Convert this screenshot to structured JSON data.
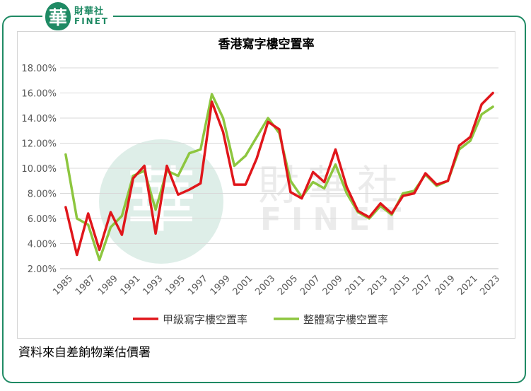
{
  "logo": {
    "mark": "華",
    "cn": "財華社",
    "en": "FINET"
  },
  "watermark": {
    "mark": "華",
    "cn": "財華社",
    "en": "FINET"
  },
  "source": "資料來自差餉物業估價署",
  "colors": {
    "grade_a": "#e0161b",
    "overall": "#8dc63f",
    "brand": "#1f8a64"
  },
  "chart_data": {
    "type": "line",
    "title": "香港寫字樓空置率",
    "xlabel": "",
    "ylabel": "",
    "x": [
      1985,
      1986,
      1987,
      1988,
      1989,
      1990,
      1991,
      1992,
      1993,
      1994,
      1995,
      1996,
      1997,
      1998,
      1999,
      2000,
      2001,
      2002,
      2003,
      2004,
      2005,
      2006,
      2007,
      2008,
      2009,
      2010,
      2011,
      2012,
      2013,
      2014,
      2015,
      2016,
      2017,
      2018,
      2019,
      2020,
      2021,
      2022,
      2023
    ],
    "x_tick_labels": [
      "1985",
      "1987",
      "1989",
      "1991",
      "1993",
      "1995",
      "1997",
      "1999",
      "2001",
      "2003",
      "2005",
      "2007",
      "2009",
      "2011",
      "2013",
      "2015",
      "2017",
      "2019",
      "2021",
      "2023"
    ],
    "y_tick_labels": [
      "2.00%",
      "4.00%",
      "6.00%",
      "8.00%",
      "10.00%",
      "12.00%",
      "14.00%",
      "16.00%",
      "18.00%"
    ],
    "ylim": [
      2,
      18
    ],
    "grid": "horizontal",
    "legend": "bottom",
    "series": [
      {
        "name": "甲級寫字樓空置率",
        "values": [
          6.9,
          3.1,
          6.4,
          3.5,
          6.5,
          4.7,
          9.2,
          10.2,
          4.8,
          10.2,
          7.9,
          8.3,
          8.8,
          15.3,
          12.9,
          8.7,
          8.7,
          10.8,
          13.7,
          13.1,
          8.1,
          7.6,
          9.7,
          8.9,
          11.5,
          8.5,
          6.6,
          6.1,
          7.2,
          6.4,
          7.8,
          8.0,
          9.6,
          8.7,
          9.0,
          11.8,
          12.5,
          15.1,
          16.0
        ]
      },
      {
        "name": "整體寫字樓空置率",
        "values": [
          11.1,
          6.0,
          5.5,
          2.7,
          5.3,
          6.2,
          9.4,
          9.8,
          6.7,
          9.8,
          9.4,
          11.2,
          11.5,
          15.9,
          14.0,
          10.2,
          11.0,
          12.5,
          14.0,
          12.8,
          9.0,
          7.7,
          8.9,
          8.4,
          10.3,
          8.0,
          6.5,
          6.0,
          7.0,
          6.3,
          8.0,
          8.2,
          9.5,
          8.6,
          9.0,
          11.5,
          12.2,
          14.3,
          14.9
        ]
      }
    ]
  }
}
